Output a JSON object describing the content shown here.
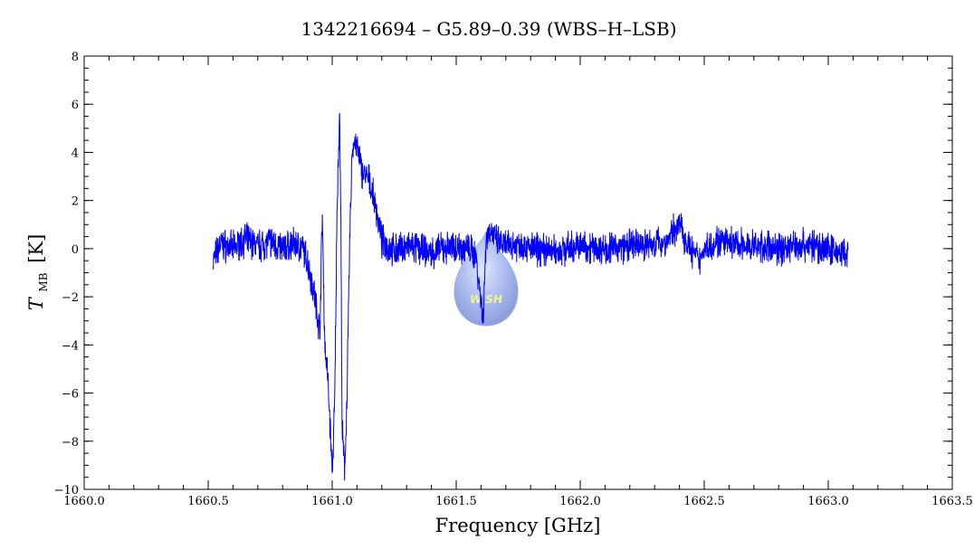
{
  "chart_data": {
    "type": "line",
    "title": "1342216694 – G5.89–0.39 (WBS–H–LSB)",
    "xlabel": "Frequency [GHz]",
    "ylabel_main": "T",
    "ylabel_sub": "MB",
    "ylabel_unit": "[K]",
    "xlim": [
      1660.0,
      1663.5
    ],
    "ylim": [
      -10,
      8
    ],
    "xticks": [
      1660.0,
      1660.5,
      1661.0,
      1661.5,
      1662.0,
      1662.5,
      1663.0,
      1663.5
    ],
    "xtick_labels": [
      "1660.0",
      "1660.5",
      "1661.0",
      "1661.5",
      "1662.0",
      "1662.5",
      "1663.0",
      "1663.5"
    ],
    "yticks": [
      -10,
      -8,
      -6,
      -4,
      -2,
      0,
      2,
      4,
      6,
      8
    ],
    "ytick_labels": [
      "−10",
      "−8",
      "−6",
      "−4",
      "−2",
      "0",
      "2",
      "4",
      "6",
      "8"
    ],
    "grid": false,
    "line_color": "#0000ff",
    "logo_text": "W SH",
    "series": [
      {
        "x": [
          1660.52,
          1660.55,
          1660.6,
          1660.65,
          1660.7,
          1660.75,
          1660.8,
          1660.85,
          1660.88,
          1660.9,
          1660.93,
          1660.95,
          1660.96,
          1660.97,
          1660.98,
          1660.99,
          1661.0,
          1661.01,
          1661.02,
          1661.03,
          1661.035,
          1661.04,
          1661.05,
          1661.06,
          1661.07,
          1661.08,
          1661.09,
          1661.1,
          1661.12,
          1661.15,
          1661.18,
          1661.2,
          1661.25,
          1661.3,
          1661.35,
          1661.4,
          1661.45,
          1661.5,
          1661.55,
          1661.58,
          1661.6,
          1661.61,
          1661.62,
          1661.64,
          1661.66,
          1661.7,
          1661.75,
          1661.8,
          1661.9,
          1662.0,
          1662.1,
          1662.2,
          1662.3,
          1662.35,
          1662.38,
          1662.4,
          1662.42,
          1662.45,
          1662.48,
          1662.5,
          1662.55,
          1662.6,
          1662.7,
          1662.8,
          1662.9,
          1663.0,
          1663.05,
          1663.08
        ],
        "y": [
          -0.5,
          0.2,
          0.0,
          0.4,
          0.1,
          0.3,
          0.0,
          0.2,
          0.0,
          -0.5,
          -2.0,
          -3.5,
          1.5,
          -4.0,
          -5.0,
          -7.0,
          -9.3,
          -6.5,
          2.0,
          5.7,
          1.0,
          -7.5,
          -9.3,
          -6.0,
          0.0,
          4.0,
          4.5,
          4.2,
          3.2,
          2.8,
          1.5,
          0.3,
          -0.1,
          0.1,
          0.0,
          -0.2,
          0.0,
          0.1,
          0.0,
          -0.3,
          -2.2,
          -2.8,
          0.5,
          0.8,
          0.3,
          0.1,
          0.2,
          0.0,
          -0.1,
          0.1,
          0.0,
          0.1,
          0.2,
          0.3,
          0.8,
          1.0,
          0.5,
          -0.1,
          -0.5,
          0.0,
          0.3,
          0.2,
          0.1,
          0.0,
          0.2,
          0.0,
          -0.2,
          -0.3
        ]
      }
    ]
  }
}
